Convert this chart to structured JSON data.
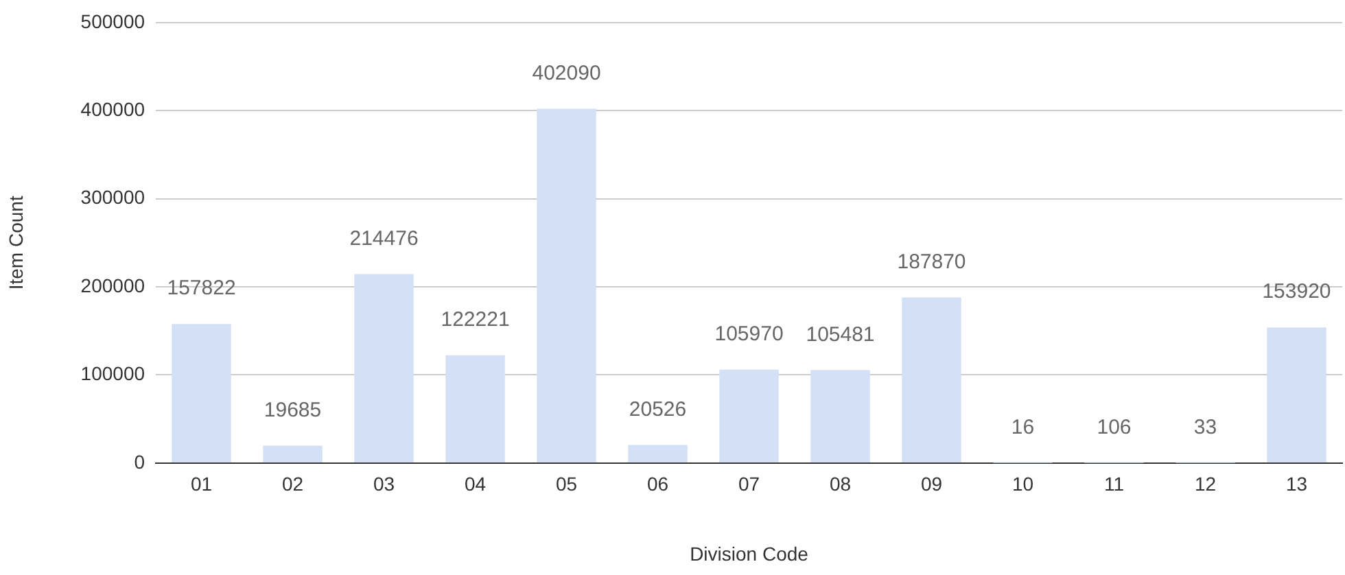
{
  "chart_data": {
    "type": "bar",
    "xlabel": "Division Code",
    "ylabel": "Item Count",
    "categories": [
      "01",
      "02",
      "03",
      "04",
      "05",
      "06",
      "07",
      "08",
      "09",
      "10",
      "11",
      "12",
      "13"
    ],
    "values": [
      157822,
      19685,
      214476,
      122221,
      402090,
      20526,
      105970,
      105481,
      187870,
      16,
      106,
      33,
      153920
    ],
    "color": "#d3e0f5",
    "ylim": [
      0,
      500000
    ],
    "yticks": [
      0,
      100000,
      200000,
      300000,
      400000,
      500000
    ],
    "grid": "y",
    "data_labels": true
  }
}
